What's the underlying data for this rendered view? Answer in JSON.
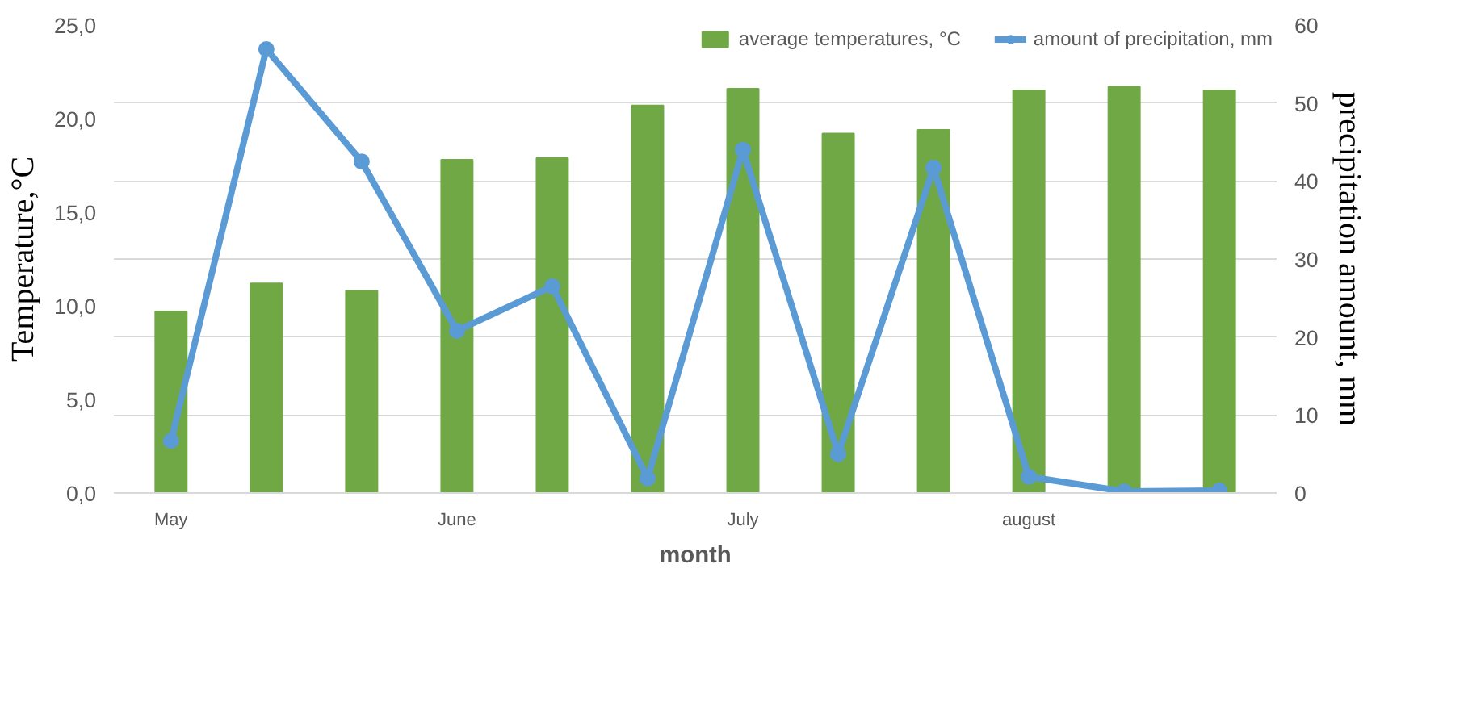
{
  "chart_data": {
    "type": "bar",
    "xlabel": "month",
    "ylabel": "Temperature,°C",
    "y2label": "precipitation amount, mm",
    "categories": [
      "May",
      null,
      null,
      "June",
      null,
      null,
      "July",
      null,
      null,
      "august",
      null,
      null
    ],
    "series": [
      {
        "name": "average temperatures, °C",
        "color": "#70a845",
        "values": [
          9.7,
          11.2,
          10.8,
          17.8,
          17.9,
          20.7,
          21.6,
          19.2,
          19.4,
          21.5,
          21.7,
          21.5
        ]
      },
      {
        "name": "amount of precipitation, mm",
        "type": "line",
        "axis": "y2",
        "color": "#5b9bd5",
        "marker": "circle",
        "values": [
          6.7,
          56.9,
          42.5,
          20.8,
          26.5,
          1.9,
          44.0,
          5.0,
          41.7,
          2.1,
          0.2,
          0.3
        ]
      }
    ],
    "ylim": [
      0,
      25
    ],
    "yticks": [
      {
        "value": 0,
        "label": "0,0"
      },
      {
        "value": 5,
        "label": "5,0"
      },
      {
        "value": 10,
        "label": "10,0"
      },
      {
        "value": 15,
        "label": "15,0"
      },
      {
        "value": 20,
        "label": "20,0"
      },
      {
        "value": 25,
        "label": "25,0"
      }
    ],
    "y2lim": [
      0,
      60
    ],
    "y2ticks": [
      0,
      10,
      20,
      30,
      40,
      50,
      60
    ],
    "grid": "y",
    "legend": "top right"
  }
}
